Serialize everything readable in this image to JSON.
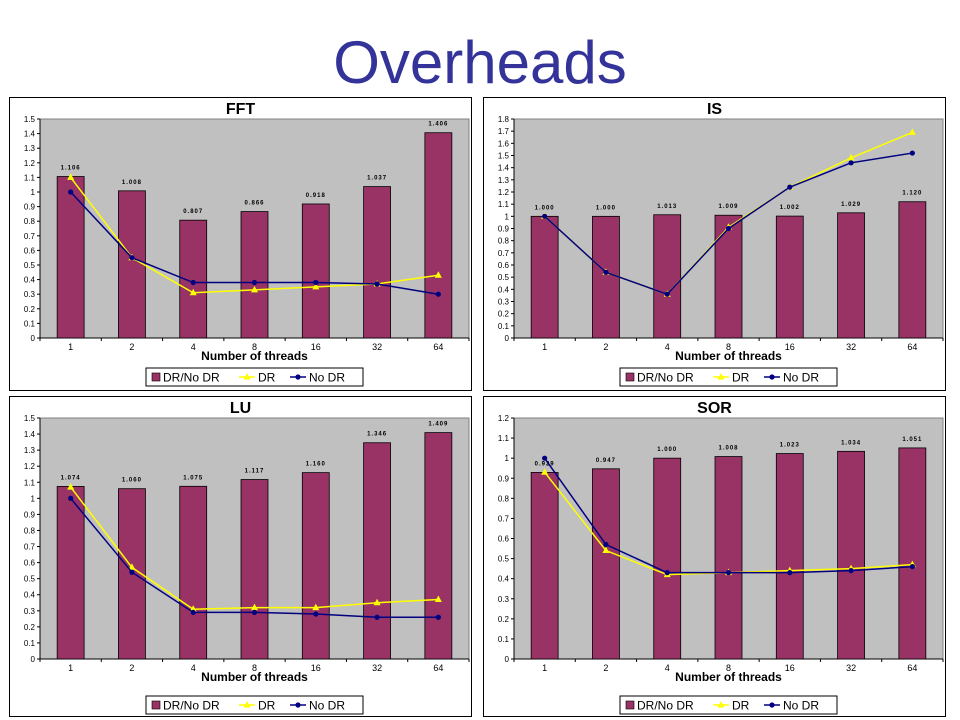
{
  "slide": {
    "title": "Overheads"
  },
  "colors": {
    "bar": "#993366",
    "dr": "#FFFF00",
    "no_dr": "#000080",
    "plot_bg": "#C0C0C0"
  },
  "chart_data": [
    {
      "type": "bar",
      "title": "FFT",
      "xlabel": "Number of threads",
      "ylabel": "",
      "categories": [
        "1",
        "2",
        "4",
        "8",
        "16",
        "32",
        "64"
      ],
      "ylim": [
        0,
        1.5
      ],
      "yticks": [
        "0",
        "0.1",
        "0.2",
        "0.3",
        "0.4",
        "0.5",
        "0.6",
        "0.7",
        "0.8",
        "0.9",
        "1",
        "1.1",
        "1.2",
        "1.3",
        "1.4",
        "1.5"
      ],
      "grid": false,
      "legend": "bottom",
      "series": [
        {
          "name": "DR/No DR",
          "kind": "bar",
          "values": [
            1.106,
            1.008,
            0.807,
            0.866,
            0.918,
            1.037,
            1.406
          ],
          "labels": [
            "1.106",
            "1.008",
            "0.807",
            "0.866",
            "0.918",
            "1.037",
            "1.406"
          ]
        },
        {
          "name": "DR",
          "kind": "line",
          "marker": "triangle",
          "values": [
            1.1,
            0.55,
            0.31,
            0.33,
            0.35,
            0.37,
            0.43
          ]
        },
        {
          "name": "No DR",
          "kind": "line",
          "marker": "circle",
          "values": [
            1.0,
            0.55,
            0.38,
            0.38,
            0.38,
            0.37,
            0.3
          ]
        }
      ]
    },
    {
      "type": "bar",
      "title": "IS",
      "xlabel": "Number of threads",
      "ylabel": "",
      "categories": [
        "1",
        "2",
        "4",
        "8",
        "16",
        "32",
        "64"
      ],
      "ylim": [
        0,
        1.8
      ],
      "yticks": [
        "0",
        "0.1",
        "0.2",
        "0.3",
        "0.4",
        "0.5",
        "0.6",
        "0.7",
        "0.8",
        "0.9",
        "1",
        "1.1",
        "1.2",
        "1.3",
        "1.4",
        "1.5",
        "1.6",
        "1.7",
        "1.8"
      ],
      "grid": false,
      "legend": "bottom",
      "series": [
        {
          "name": "DR/No DR",
          "kind": "bar",
          "values": [
            1.0,
            1.0,
            1.013,
            1.009,
            1.002,
            1.029,
            1.12
          ],
          "labels": [
            "1.000",
            "1.000",
            "1.013",
            "1.009",
            "1.002",
            "1.029",
            "1.120"
          ]
        },
        {
          "name": "DR",
          "kind": "line",
          "marker": "triangle",
          "values": [
            1.0,
            0.54,
            0.36,
            0.91,
            1.24,
            1.48,
            1.69
          ]
        },
        {
          "name": "No DR",
          "kind": "line",
          "marker": "circle",
          "values": [
            1.0,
            0.54,
            0.36,
            0.9,
            1.24,
            1.44,
            1.52
          ]
        }
      ]
    },
    {
      "type": "bar",
      "title": "LU",
      "xlabel": "Number of threads",
      "ylabel": "",
      "categories": [
        "1",
        "2",
        "4",
        "8",
        "16",
        "32",
        "64"
      ],
      "ylim": [
        0,
        1.5
      ],
      "yticks": [
        "0",
        "0.1",
        "0.2",
        "0.3",
        "0.4",
        "0.5",
        "0.6",
        "0.7",
        "0.8",
        "0.9",
        "1",
        "1.1",
        "1.2",
        "1.3",
        "1.4",
        "1.5"
      ],
      "grid": false,
      "legend": "bottom",
      "series": [
        {
          "name": "DR/No DR",
          "kind": "bar",
          "values": [
            1.074,
            1.06,
            1.075,
            1.117,
            1.16,
            1.346,
            1.409
          ],
          "labels": [
            "1.074",
            "1.060",
            "1.075",
            "1.117",
            "1.160",
            "1.346",
            "1.409"
          ]
        },
        {
          "name": "DR",
          "kind": "line",
          "marker": "triangle",
          "values": [
            1.07,
            0.57,
            0.31,
            0.32,
            0.32,
            0.35,
            0.37
          ]
        },
        {
          "name": "No DR",
          "kind": "line",
          "marker": "circle",
          "values": [
            1.0,
            0.54,
            0.29,
            0.29,
            0.28,
            0.26,
            0.26
          ]
        }
      ]
    },
    {
      "type": "bar",
      "title": "SOR",
      "xlabel": "Number of threads",
      "ylabel": "",
      "categories": [
        "1",
        "2",
        "4",
        "8",
        "16",
        "32",
        "64"
      ],
      "ylim": [
        0,
        1.2
      ],
      "yticks": [
        "0",
        "0.1",
        "0.2",
        "0.3",
        "0.4",
        "0.5",
        "0.6",
        "0.7",
        "0.8",
        "0.9",
        "1",
        "1.1",
        "1.2"
      ],
      "grid": false,
      "legend": "bottom",
      "series": [
        {
          "name": "DR/No DR",
          "kind": "bar",
          "values": [
            0.929,
            0.947,
            1.0,
            1.008,
            1.023,
            1.034,
            1.051
          ],
          "labels": [
            "0.929",
            "0.947",
            "1.000",
            "1.008",
            "1.023",
            "1.034",
            "1.051"
          ]
        },
        {
          "name": "DR",
          "kind": "line",
          "marker": "triangle",
          "values": [
            0.93,
            0.54,
            0.42,
            0.43,
            0.44,
            0.45,
            0.47
          ]
        },
        {
          "name": "No DR",
          "kind": "line",
          "marker": "circle",
          "values": [
            1.0,
            0.57,
            0.43,
            0.43,
            0.43,
            0.44,
            0.46
          ]
        }
      ]
    }
  ]
}
